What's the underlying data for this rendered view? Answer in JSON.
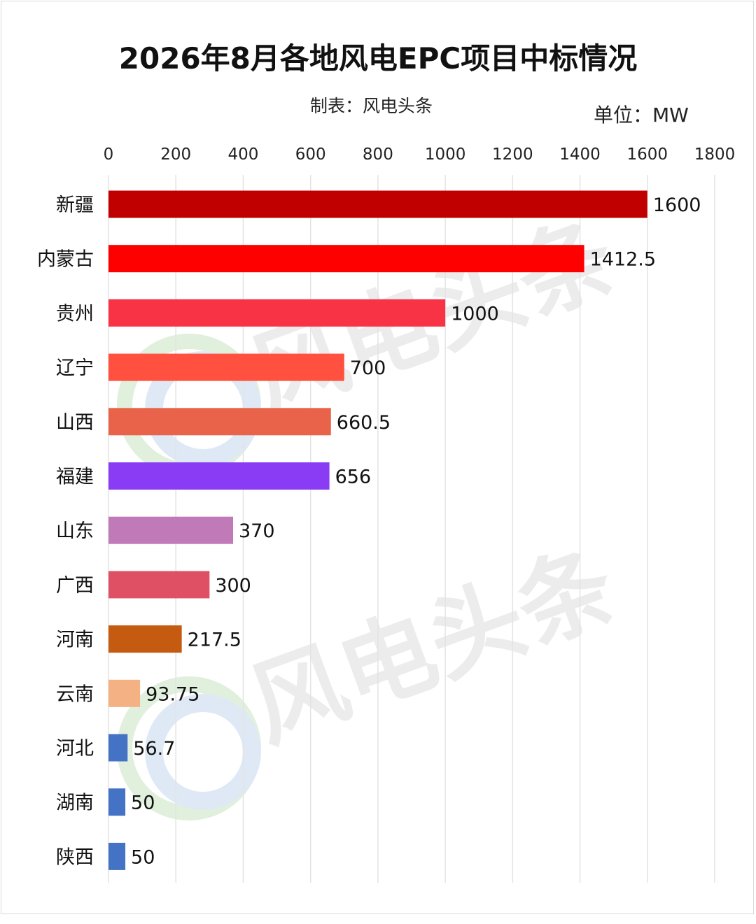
{
  "title": "2026年8月各地风电EPC项目中标情况",
  "credit": "制表：风电头条",
  "unit": "单位：MW",
  "watermark": "风电头条",
  "chart_data": {
    "type": "bar",
    "orientation": "horizontal",
    "title": "2026年8月各地风电EPC项目中标情况",
    "xlim": [
      0,
      1800
    ],
    "x_ticks": [
      0,
      200,
      400,
      600,
      800,
      1000,
      1200,
      1400,
      1600,
      1800
    ],
    "x_axis_position": "top",
    "grid": "vertical",
    "categories": [
      "新疆",
      "内蒙古",
      "贵州",
      "辽宁",
      "山西",
      "福建",
      "山东",
      "广西",
      "河南",
      "云南",
      "河北",
      "湖南",
      "陕西"
    ],
    "values": [
      1600,
      1412.5,
      1000,
      700,
      660.5,
      656,
      370,
      300,
      217.5,
      93.75,
      56.7,
      50,
      50
    ],
    "value_labels": [
      "1600",
      "1412.5",
      "1000",
      "700",
      "660.5",
      "656",
      "370",
      "300",
      "217.5",
      "93.75",
      "56.7",
      "50",
      "50"
    ],
    "colors": [
      "#c00000",
      "#ff0000",
      "#f93346",
      "#ff5040",
      "#e8634a",
      "#8a3cf5",
      "#c07ab8",
      "#e05065",
      "#c55a11",
      "#f4b183",
      "#4472c4",
      "#4472c4",
      "#4472c4"
    ]
  }
}
